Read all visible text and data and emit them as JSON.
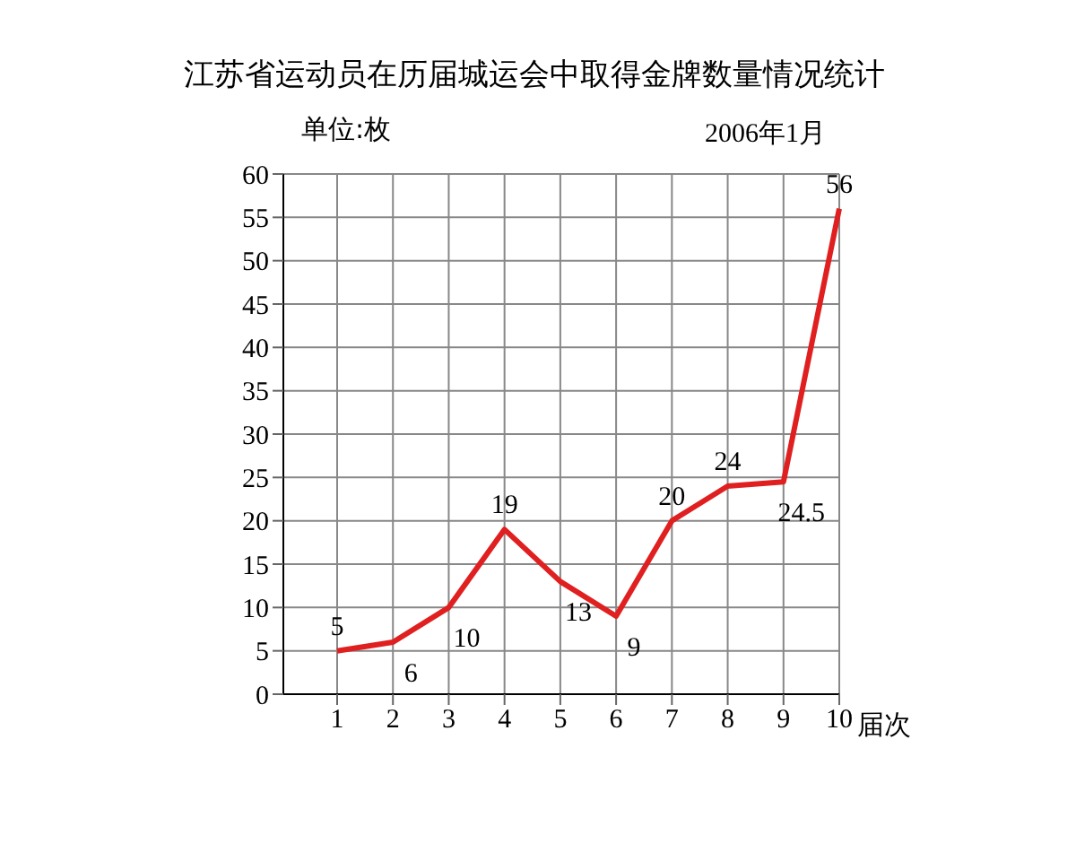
{
  "chart_data": {
    "type": "line",
    "title": "江苏省运动员在历届城运会中取得金牌数量情况统计",
    "ylabel": "单位:枚",
    "xlabel": "届次",
    "annotations": [
      "2006年1月"
    ],
    "categories": [
      "1",
      "2",
      "3",
      "4",
      "5",
      "6",
      "7",
      "8",
      "9",
      "10"
    ],
    "series": [
      {
        "color": "#e02020",
        "values": [
          5,
          6,
          10,
          19,
          13,
          9,
          20,
          24,
          24.5,
          56
        ]
      }
    ],
    "ylim": [
      0,
      60
    ],
    "yticks": [
      0,
      5,
      10,
      15,
      20,
      25,
      30,
      35,
      40,
      45,
      50,
      55,
      60
    ],
    "grid": true,
    "data_labels": true,
    "marker": "none",
    "line_style": "solid",
    "legend": false
  }
}
